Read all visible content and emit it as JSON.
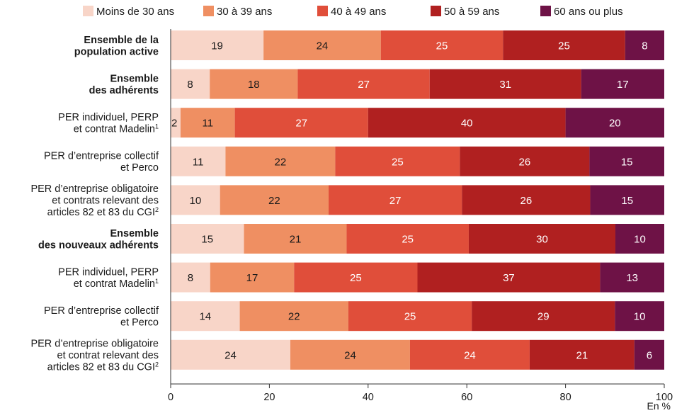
{
  "chart_data": {
    "type": "bar",
    "orientation": "horizontal",
    "stacked": true,
    "title": "",
    "xlabel": "",
    "ylabel": "",
    "unit_label": "En %",
    "xlim": [
      0,
      100
    ],
    "xticks": [
      0,
      20,
      40,
      60,
      80,
      100
    ],
    "grid": false,
    "legend_position": "top",
    "categories": [
      {
        "label": "Ensemble de la population active",
        "lines": [
          "Ensemble de la",
          "population active"
        ],
        "sup": "",
        "bold": true
      },
      {
        "label": "Ensemble des adhérents",
        "lines": [
          "Ensemble",
          "des adhérents"
        ],
        "sup": "",
        "bold": true
      },
      {
        "label": "PER individuel, PERP et contrat Madelin1",
        "lines": [
          "PER individuel, PERP",
          "et contrat Madelin"
        ],
        "sup": "1",
        "bold": false
      },
      {
        "label": "PER d’entreprise collectif et Perco",
        "lines": [
          "PER d’entreprise collectif",
          "et Perco"
        ],
        "sup": "",
        "bold": false
      },
      {
        "label": "PER d’entreprise obligatoire et contrats relevant des articles 82 et 83 du CGI2",
        "lines": [
          "PER d’entreprise obligatoire",
          "et contrats relevant des",
          "articles 82 et 83 du CGI"
        ],
        "sup": "2",
        "bold": false
      },
      {
        "label": "Ensemble des nouveaux adhérents",
        "lines": [
          "Ensemble",
          "des nouveaux adhérents"
        ],
        "sup": "",
        "bold": true
      },
      {
        "label": "PER individuel, PERP et contrat Madelin1",
        "lines": [
          "PER individuel, PERP",
          "et contrat Madelin"
        ],
        "sup": "1",
        "bold": false
      },
      {
        "label": "PER d’entreprise collectif et Perco",
        "lines": [
          "PER d’entreprise collectif",
          "et Perco"
        ],
        "sup": "",
        "bold": false
      },
      {
        "label": "PER d’entreprise obligatoire et contrat relevant des articles 82 et 83 du CGI2",
        "lines": [
          "PER d’entreprise obligatoire",
          "et contrat relevant des",
          "articles 82 et 83 du CGI"
        ],
        "sup": "2",
        "bold": false
      }
    ],
    "series": [
      {
        "name": "Moins de 30 ans",
        "color": "#f8d5c8",
        "label_color": "#1a1a1a",
        "values": [
          19,
          8,
          2,
          11,
          10,
          15,
          8,
          14,
          24
        ]
      },
      {
        "name": "30 à 39 ans",
        "color": "#ef8f62",
        "label_color": "#1a1a1a",
        "values": [
          24,
          18,
          11,
          22,
          22,
          21,
          17,
          22,
          24
        ]
      },
      {
        "name": "40 à 49 ans",
        "color": "#e04e3a",
        "label_color": "#ffffff",
        "values": [
          25,
          27,
          27,
          25,
          27,
          25,
          25,
          25,
          24
        ]
      },
      {
        "name": "50 à 59 ans",
        "color": "#b02020",
        "label_color": "#ffffff",
        "values": [
          25,
          31,
          40,
          26,
          26,
          30,
          37,
          29,
          21
        ]
      },
      {
        "name": "60 ans ou plus",
        "color": "#6e1246",
        "label_color": "#ffffff",
        "values": [
          8,
          17,
          20,
          15,
          15,
          10,
          13,
          10,
          6
        ]
      }
    ]
  }
}
